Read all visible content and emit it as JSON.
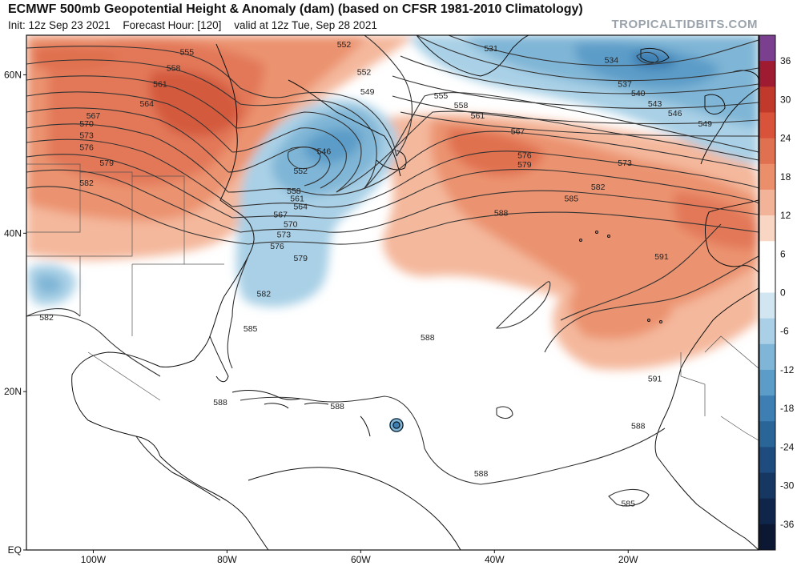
{
  "header": {
    "title": "ECMWF 500mb Geopotential Height & Anomaly (dam) (based on CFSR 1981-2010 Climatology)",
    "init": "Init: 12z Sep 23 2021",
    "forecast_hour": "Forecast Hour: [120]",
    "valid": "valid at 12z Tue, Sep 28 2021",
    "brand": "TROPICALTIDBITS.COM"
  },
  "axes": {
    "latitudes": [
      {
        "label": "60N",
        "value": 60
      },
      {
        "label": "40N",
        "value": 40
      },
      {
        "label": "20N",
        "value": 20
      },
      {
        "label": "EQ",
        "value": 0
      }
    ],
    "longitudes": [
      {
        "label": "100W",
        "value": -100
      },
      {
        "label": "80W",
        "value": -80
      },
      {
        "label": "60W",
        "value": -60
      },
      {
        "label": "40W",
        "value": -40
      },
      {
        "label": "20W",
        "value": -20
      }
    ]
  },
  "colorbar": {
    "ticks": [
      "36",
      "30",
      "24",
      "18",
      "12",
      "6",
      "0",
      "-6",
      "-12",
      "-18",
      "-24",
      "-30",
      "-36"
    ],
    "colors": [
      "#7a3f8e",
      "#9e1b32",
      "#c0392b",
      "#d9533a",
      "#e07150",
      "#eb8f6b",
      "#f3b398",
      "#f9d6c4",
      "#ffffff",
      "#ffffff",
      "#d2e6f2",
      "#a9d0e6",
      "#7fb5d6",
      "#5b9cc8",
      "#3d7fb3",
      "#2a6598",
      "#1e4c7e",
      "#173763",
      "#10254a",
      "#0b1733"
    ]
  },
  "contour_labels": [
    {
      "text": "555",
      "lon": -86,
      "lat": 62.5
    },
    {
      "text": "558",
      "lon": -88,
      "lat": 60.5
    },
    {
      "text": "561",
      "lon": -90,
      "lat": 58.5
    },
    {
      "text": "564",
      "lon": -92,
      "lat": 56
    },
    {
      "text": "567",
      "lon": -100,
      "lat": 54.5
    },
    {
      "text": "570",
      "lon": -101,
      "lat": 53.5
    },
    {
      "text": "573",
      "lon": -101,
      "lat": 52
    },
    {
      "text": "576",
      "lon": -101,
      "lat": 50.5
    },
    {
      "text": "579",
      "lon": -98,
      "lat": 48.5
    },
    {
      "text": "582",
      "lon": -101,
      "lat": 46
    },
    {
      "text": "552",
      "lon": -62.5,
      "lat": 63.5
    },
    {
      "text": "552",
      "lon": -59.5,
      "lat": 60
    },
    {
      "text": "549",
      "lon": -59,
      "lat": 57.5
    },
    {
      "text": "546",
      "lon": -65.5,
      "lat": 50
    },
    {
      "text": "552",
      "lon": -69,
      "lat": 47.5
    },
    {
      "text": "558",
      "lon": -70,
      "lat": 45
    },
    {
      "text": "561",
      "lon": -69.5,
      "lat": 44
    },
    {
      "text": "564",
      "lon": -69,
      "lat": 43
    },
    {
      "text": "567",
      "lon": -72,
      "lat": 42
    },
    {
      "text": "570",
      "lon": -70.5,
      "lat": 40.8
    },
    {
      "text": "573",
      "lon": -71.5,
      "lat": 39.5
    },
    {
      "text": "576",
      "lon": -72.5,
      "lat": 38
    },
    {
      "text": "579",
      "lon": -69,
      "lat": 36.5
    },
    {
      "text": "582",
      "lon": -74.5,
      "lat": 32
    },
    {
      "text": "585",
      "lon": -76.5,
      "lat": 27.6
    },
    {
      "text": "582",
      "lon": -107,
      "lat": 29
    },
    {
      "text": "531",
      "lon": -40.5,
      "lat": 63
    },
    {
      "text": "534",
      "lon": -22.5,
      "lat": 61.5
    },
    {
      "text": "537",
      "lon": -20.5,
      "lat": 58.5
    },
    {
      "text": "540",
      "lon": -18.5,
      "lat": 57.3
    },
    {
      "text": "543",
      "lon": -16,
      "lat": 56
    },
    {
      "text": "546",
      "lon": -13,
      "lat": 54.8
    },
    {
      "text": "549",
      "lon": -8.5,
      "lat": 53.5
    },
    {
      "text": "555",
      "lon": -48,
      "lat": 57
    },
    {
      "text": "558",
      "lon": -45,
      "lat": 55.8
    },
    {
      "text": "561",
      "lon": -42.5,
      "lat": 54.5
    },
    {
      "text": "567",
      "lon": -36.5,
      "lat": 52.5
    },
    {
      "text": "576",
      "lon": -35.5,
      "lat": 49.5
    },
    {
      "text": "579",
      "lon": -35.5,
      "lat": 48.3
    },
    {
      "text": "573",
      "lon": -20.5,
      "lat": 48.5
    },
    {
      "text": "582",
      "lon": -24.5,
      "lat": 45.5
    },
    {
      "text": "585",
      "lon": -28.5,
      "lat": 44
    },
    {
      "text": "588",
      "lon": -39,
      "lat": 42.2
    },
    {
      "text": "591",
      "lon": -15,
      "lat": 36.7
    },
    {
      "text": "588",
      "lon": -50,
      "lat": 26.5
    },
    {
      "text": "591",
      "lon": -16,
      "lat": 21.3
    },
    {
      "text": "588",
      "lon": -81,
      "lat": 18.3
    },
    {
      "text": "588",
      "lon": -63.5,
      "lat": 17.8
    },
    {
      "text": "588",
      "lon": -18.5,
      "lat": 15.3
    },
    {
      "text": "588",
      "lon": -42,
      "lat": 9.3
    },
    {
      "text": "585",
      "lon": -20,
      "lat": 5.5
    }
  ]
}
